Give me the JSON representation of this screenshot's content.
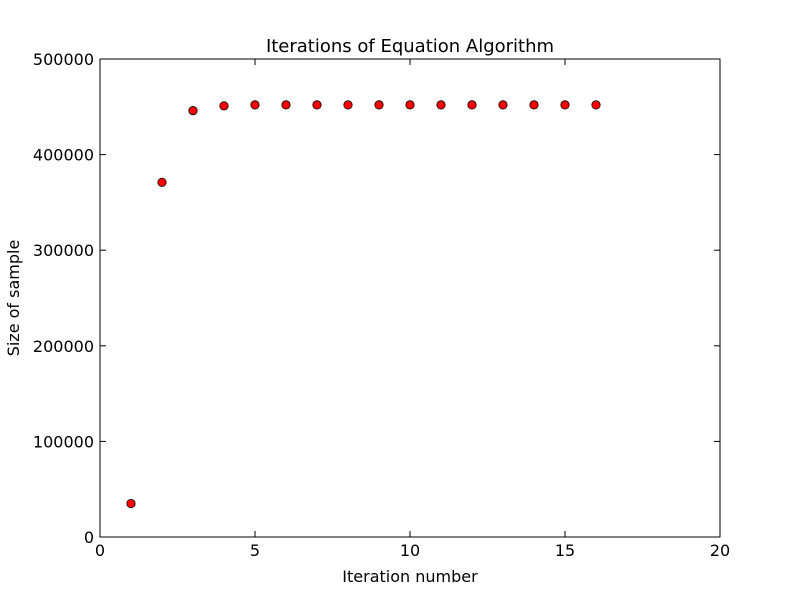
{
  "chart_data": {
    "type": "scatter",
    "title": "Iterations of Equation Algorithm",
    "xlabel": "Iteration number",
    "ylabel": "Size of sample",
    "xlim": [
      0,
      20
    ],
    "ylim": [
      0,
      500000
    ],
    "x_ticks": [
      0,
      5,
      10,
      15,
      20
    ],
    "y_ticks": [
      0,
      100000,
      200000,
      300000,
      400000,
      500000
    ],
    "x_tick_labels": [
      "0",
      "5",
      "10",
      "15",
      "20"
    ],
    "y_tick_labels": [
      "0",
      "100000",
      "200000",
      "300000",
      "400000",
      "500000"
    ],
    "grid": false,
    "legend": "none",
    "series": [
      {
        "color": "#ff0000",
        "marker": "circle",
        "x": [
          1,
          2,
          3,
          4,
          5,
          6,
          7,
          8,
          9,
          10,
          11,
          12,
          13,
          14,
          15,
          16
        ],
        "y": [
          35000,
          371000,
          446000,
          451000,
          452000,
          452000,
          452000,
          452000,
          452000,
          452000,
          452000,
          452000,
          452000,
          452000,
          452000,
          452000
        ]
      }
    ]
  }
}
